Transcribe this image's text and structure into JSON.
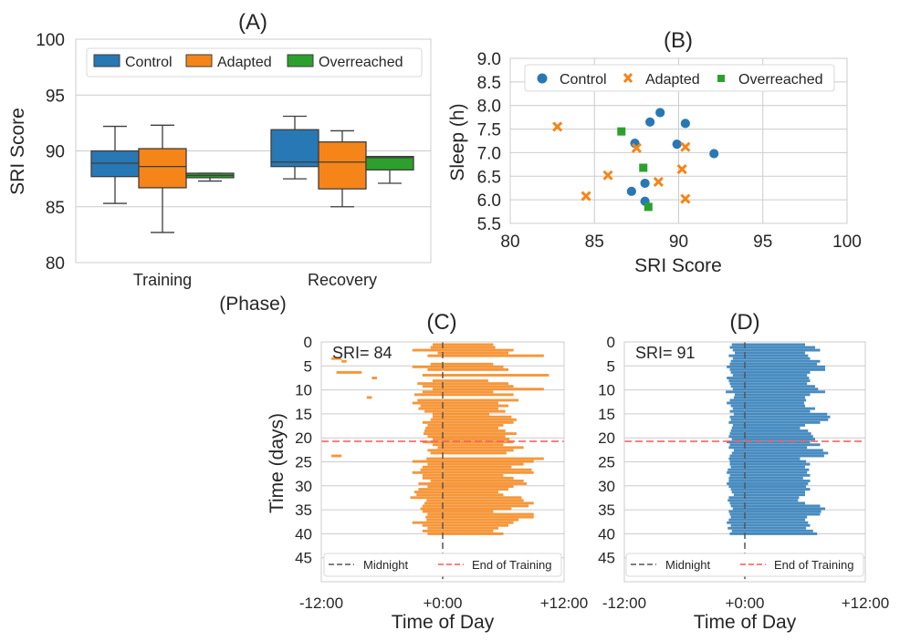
{
  "chart_data": [
    {
      "type": "box",
      "title": "(A)",
      "xlabel": "(Phase)",
      "ylabel": "SRI Score",
      "ylim": [
        80,
        100
      ],
      "yticks": [
        80,
        85,
        90,
        95,
        100
      ],
      "categories": [
        "Training",
        "Recovery"
      ],
      "legend": {
        "placement": "top",
        "entries": [
          "Control",
          "Adapted",
          "Overreached"
        ]
      },
      "series": [
        {
          "name": "Control",
          "color": "#2878b5",
          "boxes": [
            {
              "whisker_low": 85.3,
              "q1": 87.7,
              "median": 88.9,
              "q3": 90.0,
              "whisker_high": 92.2
            },
            {
              "whisker_low": 87.5,
              "q1": 88.6,
              "median": 89.0,
              "q3": 91.9,
              "whisker_high": 93.1
            }
          ]
        },
        {
          "name": "Adapted",
          "color": "#f58518",
          "boxes": [
            {
              "whisker_low": 82.7,
              "q1": 86.7,
              "median": 88.6,
              "q3": 90.2,
              "whisker_high": 92.3
            },
            {
              "whisker_low": 85.0,
              "q1": 86.6,
              "median": 89.0,
              "q3": 90.8,
              "whisker_high": 91.8
            }
          ]
        },
        {
          "name": "Overreached",
          "color": "#2ca02c",
          "boxes": [
            {
              "whisker_low": 87.3,
              "q1": 87.6,
              "median": 87.8,
              "q3": 88.0,
              "whisker_high": 88.0
            },
            {
              "whisker_low": 87.1,
              "q1": 88.3,
              "median": 89.4,
              "q3": 89.5,
              "whisker_high": 89.5
            }
          ]
        }
      ]
    },
    {
      "type": "scatter",
      "title": "(B)",
      "xlabel": "SRI Score",
      "ylabel": "Sleep (h)",
      "xlim": [
        80,
        100
      ],
      "ylim": [
        5.5,
        9.0
      ],
      "xticks": [
        80,
        85,
        90,
        95,
        100
      ],
      "yticks": [
        5.5,
        6.0,
        6.5,
        7.0,
        7.5,
        8.0,
        8.5,
        9.0
      ],
      "legend": {
        "placement": "top",
        "entries": [
          "Control",
          "Adapted",
          "Overreached"
        ]
      },
      "series": [
        {
          "name": "Control",
          "marker": "circle",
          "color": "#2878b5",
          "points": [
            [
              88.9,
              7.85
            ],
            [
              88.3,
              7.65
            ],
            [
              90.4,
              7.62
            ],
            [
              87.4,
              7.2
            ],
            [
              89.9,
              7.18
            ],
            [
              92.1,
              6.98
            ],
            [
              88.0,
              6.35
            ],
            [
              87.2,
              6.18
            ],
            [
              88.0,
              5.97
            ]
          ]
        },
        {
          "name": "Adapted",
          "marker": "x",
          "color": "#f58518",
          "points": [
            [
              82.8,
              7.55
            ],
            [
              87.5,
              7.1
            ],
            [
              90.4,
              7.12
            ],
            [
              90.2,
              6.65
            ],
            [
              85.8,
              6.52
            ],
            [
              88.8,
              6.38
            ],
            [
              84.5,
              6.08
            ],
            [
              90.4,
              6.02
            ]
          ]
        },
        {
          "name": "Overreached",
          "marker": "square",
          "color": "#2ca02c",
          "points": [
            [
              86.6,
              7.45
            ],
            [
              87.9,
              6.68
            ],
            [
              88.2,
              5.85
            ]
          ]
        }
      ]
    },
    {
      "type": "raster",
      "title": "(C)",
      "annotation": "SRI= 84",
      "xlabel": "Time of Day",
      "ylabel": "Time (days)",
      "xtick_labels": [
        "-12:00",
        "+0:00",
        "+12:00"
      ],
      "xlim_hours": [
        -12,
        12
      ],
      "yticks": [
        0,
        5,
        10,
        15,
        20,
        25,
        30,
        35,
        40,
        45
      ],
      "ylim_days": [
        0,
        50
      ],
      "color": "#f58518",
      "end_of_training_day": 21,
      "legend": {
        "placement": "bottom",
        "entries": [
          "Midnight",
          "End of Training"
        ]
      },
      "sleep_episodes_hours": [
        [
          -1,
          5
        ],
        [
          -1.2,
          5.2
        ],
        [
          -3,
          7
        ],
        [
          -0.5,
          6.5
        ],
        [
          -1.5,
          10
        ],
        [
          -11,
          -10
        ],
        [
          -10,
          -9.5
        ],
        [
          -1.2,
          5
        ],
        [
          -3,
          6
        ],
        [
          -1.5,
          6.5
        ],
        [
          -10.5,
          -8
        ],
        [
          -2,
          10.5
        ],
        [
          -7,
          -6.5
        ],
        [
          -1,
          4.5
        ],
        [
          -2.5,
          6.5
        ],
        [
          -2,
          7
        ],
        [
          -1,
          10
        ],
        [
          -2,
          5
        ],
        [
          -2.8,
          7
        ],
        [
          -7.5,
          -7
        ],
        [
          -2.5,
          7.5
        ],
        [
          -3,
          5.5
        ],
        [
          -2.2,
          6.5
        ],
        [
          -2.4,
          5.5
        ],
        [
          -1.8,
          6.2
        ],
        [
          -1,
          4.6
        ],
        [
          -1,
          6.8
        ],
        [
          -1.2,
          7.3
        ],
        [
          -2,
          7
        ],
        [
          -1.5,
          6
        ],
        [
          -1.7,
          5.5
        ],
        [
          -1.8,
          6.2
        ],
        [
          -1.9,
          7.3
        ],
        [
          -1.5,
          6.2
        ],
        [
          -1,
          6.6
        ],
        [
          -2,
          7
        ],
        [
          -1,
          6
        ],
        [
          -0.5,
          8
        ],
        [
          -1.5,
          7
        ],
        [
          -1.2,
          6.3
        ],
        [
          -11,
          -10
        ],
        [
          -1.6,
          10
        ],
        [
          -3,
          9
        ],
        [
          -1.5,
          8
        ],
        [
          -2,
          6.8
        ],
        [
          -2.2,
          8.8
        ],
        [
          -3,
          9
        ],
        [
          -2,
          6
        ],
        [
          -2,
          7
        ],
        [
          -1.2,
          8
        ],
        [
          -2.4,
          8.3
        ],
        [
          -1.5,
          7
        ],
        [
          -2.4,
          6.5
        ],
        [
          -2.8,
          5.5
        ],
        [
          -2.6,
          6
        ],
        [
          -3.2,
          7.8
        ],
        [
          -1.6,
          8
        ],
        [
          -1.8,
          9
        ],
        [
          -2,
          8.5
        ],
        [
          -2.2,
          6.8
        ],
        [
          -2,
          5
        ],
        [
          -1.5,
          9
        ],
        [
          -1.7,
          9
        ],
        [
          -1.6,
          7.5
        ],
        [
          -3,
          7
        ],
        [
          -2,
          6.5
        ],
        [
          -1.5,
          5.5
        ],
        [
          -2,
          5
        ],
        [
          -1.5,
          6
        ]
      ]
    },
    {
      "type": "raster",
      "title": "(D)",
      "annotation": "SRI= 91",
      "xlabel": "Time of Day",
      "ylabel": "",
      "xtick_labels": [
        "-12:00",
        "+0:00",
        "+12:00"
      ],
      "xlim_hours": [
        -12,
        12
      ],
      "yticks": [
        0,
        5,
        10,
        15,
        20,
        25,
        30,
        35,
        40,
        45
      ],
      "ylim_days": [
        0,
        50
      ],
      "color": "#2878b5",
      "end_of_training_day": 21,
      "legend": {
        "placement": "bottom",
        "entries": [
          "Midnight",
          "End of Training"
        ]
      },
      "sleep_episodes_hours": [
        [
          -1.3,
          6
        ],
        [
          -1.5,
          7
        ],
        [
          -1.2,
          7.5
        ],
        [
          -1,
          6
        ],
        [
          -1.6,
          6.3
        ],
        [
          -1.2,
          6.5
        ],
        [
          -1.4,
          7.5
        ],
        [
          -1.5,
          7.2
        ],
        [
          -1.8,
          8
        ],
        [
          -1.5,
          8
        ],
        [
          -1.4,
          6.5
        ],
        [
          -1.2,
          6.2
        ],
        [
          -1.8,
          6.4
        ],
        [
          -1.6,
          6.5
        ],
        [
          -1.5,
          6.2
        ],
        [
          -1.4,
          7
        ],
        [
          -1.2,
          7.3
        ],
        [
          -1.9,
          8
        ],
        [
          -1,
          6.5
        ],
        [
          -1.1,
          6
        ],
        [
          -1.5,
          6.1
        ],
        [
          -1.8,
          5.9
        ],
        [
          -1.4,
          6
        ],
        [
          -1.2,
          7
        ],
        [
          -1.5,
          6.5
        ],
        [
          -1.1,
          8.2
        ],
        [
          -1.5,
          8.5
        ],
        [
          -1.4,
          8.3
        ],
        [
          -1.6,
          7.5
        ],
        [
          -1.2,
          6
        ],
        [
          -1.3,
          5.5
        ],
        [
          -1.4,
          6.3
        ],
        [
          -1.5,
          6.6
        ],
        [
          -1.6,
          6.8
        ],
        [
          -1.3,
          7
        ],
        [
          -1.8,
          6.5
        ],
        [
          -1.5,
          7.5
        ],
        [
          -1.6,
          6.2
        ],
        [
          -1.1,
          7.8
        ],
        [
          -1.3,
          8.3
        ],
        [
          -1.5,
          7.9
        ],
        [
          -1.6,
          5.5
        ],
        [
          -1.5,
          6.1
        ],
        [
          -1.5,
          6.5
        ],
        [
          -1.4,
          6
        ],
        [
          -1.7,
          6.4
        ],
        [
          -1.8,
          6.2
        ],
        [
          -1.5,
          6.5
        ],
        [
          -1.6,
          5.8
        ],
        [
          -1.6,
          6.5
        ],
        [
          -1.8,
          6.3
        ],
        [
          -1.6,
          6.1
        ],
        [
          -1.4,
          6.5
        ],
        [
          -1.3,
          6
        ],
        [
          -1.1,
          6
        ],
        [
          -1.6,
          5.4
        ],
        [
          -1.7,
          5.3
        ],
        [
          -1.5,
          6
        ],
        [
          -1.4,
          7.5
        ],
        [
          -1.2,
          8
        ],
        [
          -1.6,
          7.6
        ],
        [
          -1.5,
          7.5
        ],
        [
          -1.4,
          6.2
        ],
        [
          -1.6,
          6
        ],
        [
          -1.8,
          6.3
        ],
        [
          -1.4,
          6.5
        ],
        [
          -1.7,
          6.1
        ],
        [
          -1.3,
          6.8
        ],
        [
          -1.5,
          7.2
        ]
      ]
    }
  ]
}
